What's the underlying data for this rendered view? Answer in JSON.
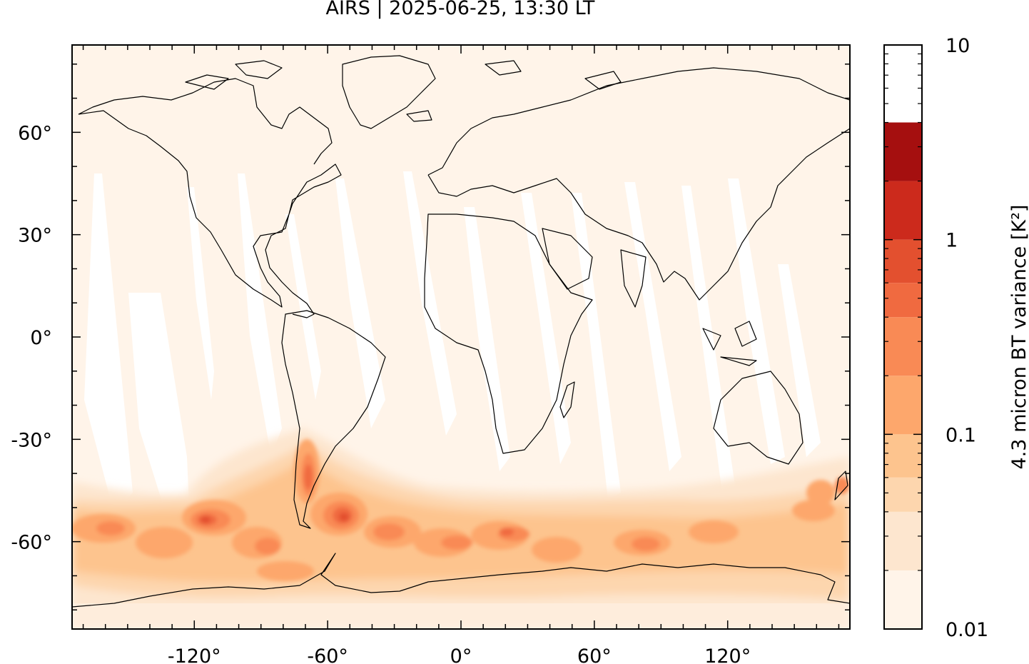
{
  "title": "AIRS | 2025-06-25, 13:30 LT",
  "colorbar": {
    "label": "4.3 micron BT variance [K²]",
    "tick_labels": [
      "10",
      "1",
      "0.1",
      "0.01"
    ],
    "levels": [
      "0.01",
      "0.02",
      "0.04",
      "0.06",
      "0.1",
      "0.2",
      "0.4",
      "0.6",
      "1",
      "2",
      "4",
      "6",
      "10"
    ],
    "colors": [
      "#fff4e9",
      "#fde6cf",
      "#fdd6ae",
      "#fdc48e",
      "#fda76c",
      "#f98a55",
      "#f06a40",
      "#e3502f",
      "#cc2a1c",
      "#a50f0f"
    ]
  },
  "map": {
    "x_ticks": [
      "-120°",
      "-60°",
      "0°",
      "60°",
      "120°"
    ],
    "y_ticks": [
      "60°",
      "30°",
      "0°",
      "-30°",
      "-60°"
    ],
    "background_color": "#fff4e9",
    "coastline_color": "#000000"
  }
}
